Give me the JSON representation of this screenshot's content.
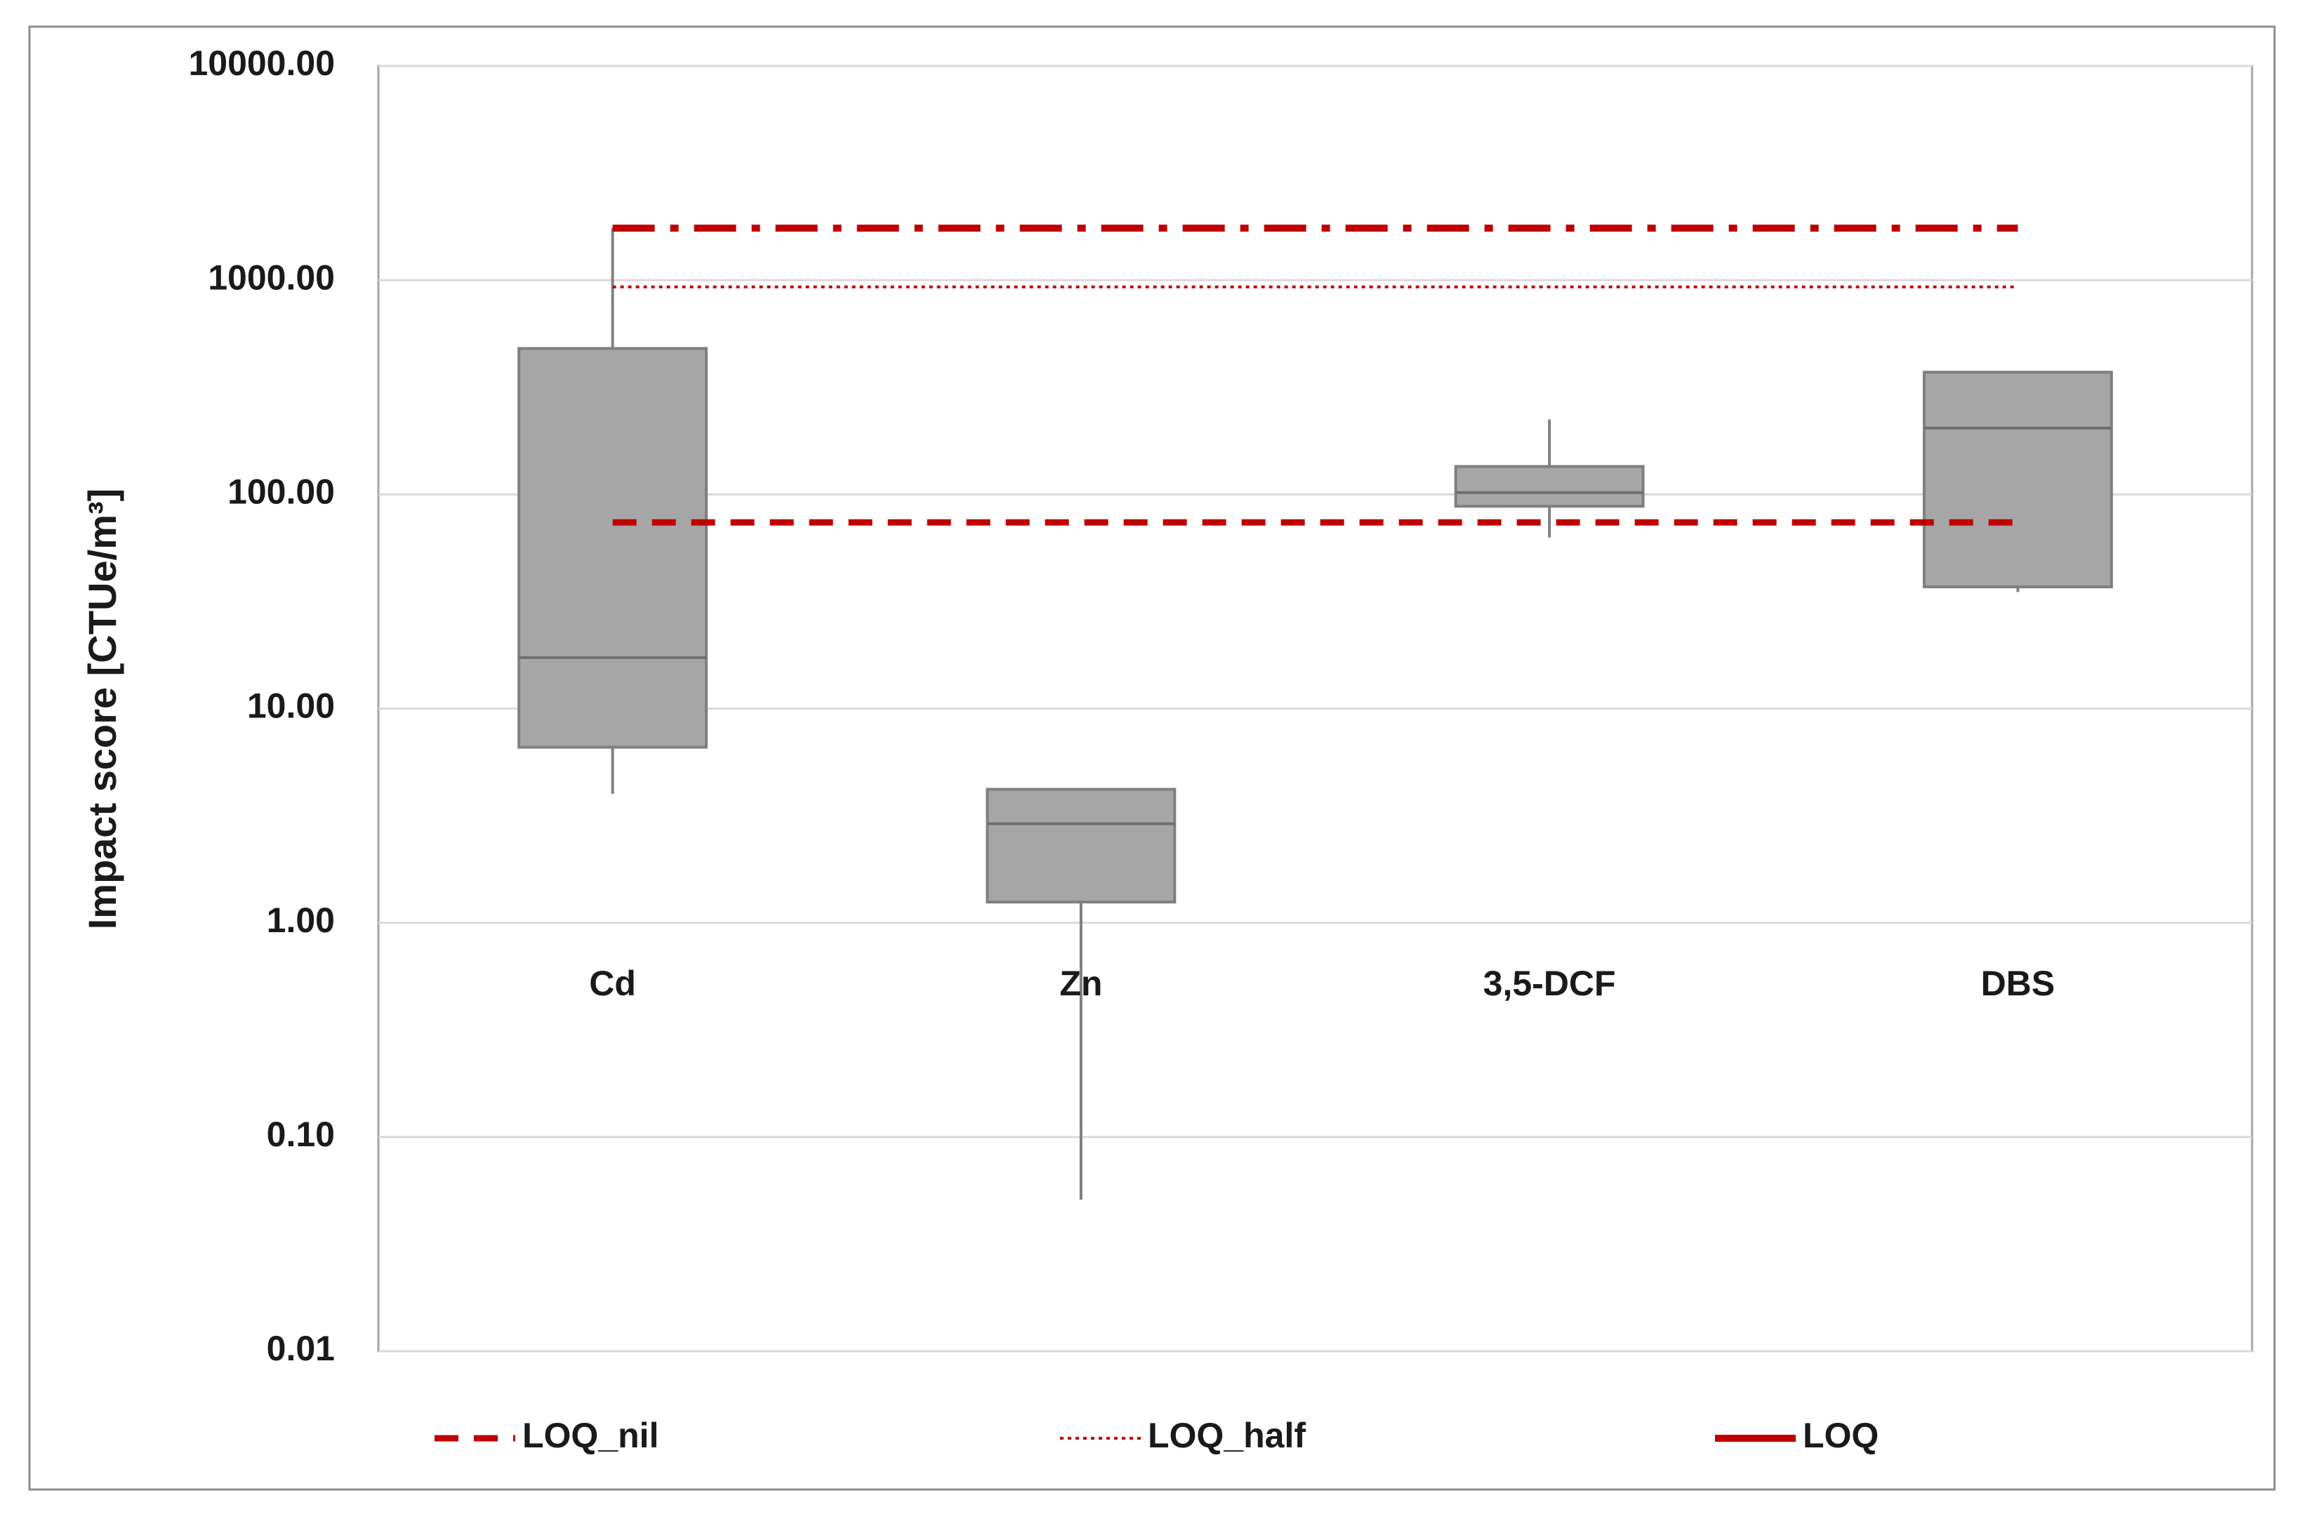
{
  "chart_data": {
    "type": "box",
    "y_label": "Impact score [CTUe/m³]",
    "categories": [
      "Cd",
      "Zn",
      "3,5-DCF",
      "DBS"
    ],
    "boxes": [
      {
        "min": 4.0,
        "q1": 6.6,
        "median": 17.3,
        "q3": 480,
        "max": 1750
      },
      {
        "min": 0.051,
        "q1": 1.25,
        "median": 2.9,
        "q3": 4.2,
        "max": 4.2
      },
      {
        "min": 63,
        "q1": 88,
        "median": 102,
        "q3": 135,
        "max": 224
      },
      {
        "min": 35,
        "q1": 37,
        "median": 204,
        "q3": 372,
        "max": 372
      }
    ],
    "box_color": "#a6a6a6",
    "lines": [
      {
        "name": "LOQ_nil",
        "value": 74,
        "style": "dashed",
        "color": "#c00000"
      },
      {
        "name": "LOQ_half",
        "value": 930,
        "style": "dotted",
        "color": "#c00000"
      },
      {
        "name": "LOQ",
        "value": 1750,
        "style": "dashdot",
        "color": "#c00000"
      }
    ],
    "log_y": true,
    "ylim": [
      0.01,
      10000
    ],
    "yticks": [
      0.01,
      {
        "value": 0.1,
        "label": "0.10"
      },
      {
        "value": 1,
        "label": "1.00"
      },
      {
        "value": 10,
        "label": "10.00"
      },
      {
        "value": 100,
        "label": "100.00"
      },
      {
        "value": 1000,
        "label": "1000.00"
      },
      {
        "value": 10000,
        "label": "10000.00"
      }
    ],
    "grid": true,
    "legend": "bottom"
  }
}
